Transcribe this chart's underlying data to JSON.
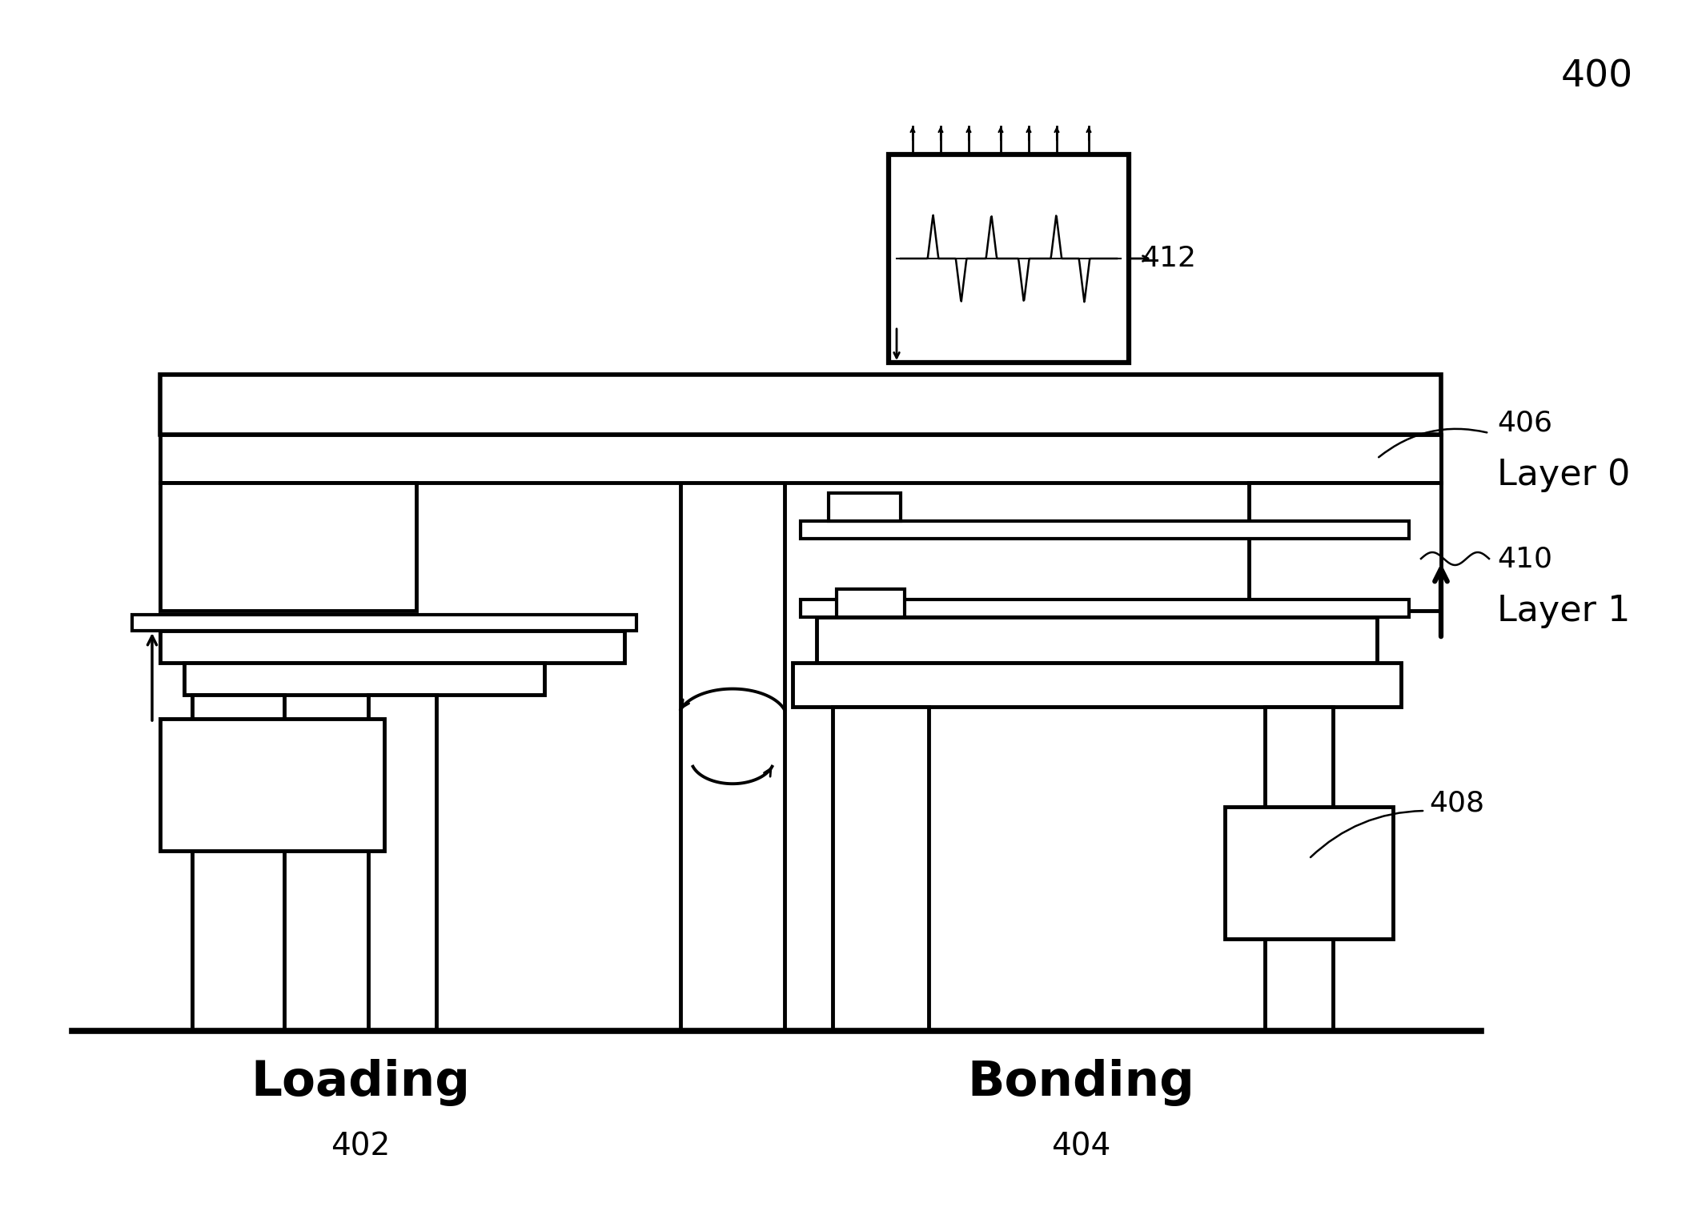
{
  "bg_color": "#ffffff",
  "lc": "#000000",
  "lw": 3.5,
  "thin_lw": 2.5,
  "fig_label": "400",
  "loading_label": "Loading",
  "bonding_label": "Bonding",
  "label_402": "402",
  "label_404": "404",
  "label_406": "406",
  "label_408": "408",
  "label_410": "410",
  "label_412": "412",
  "layer0_label": "Layer 0",
  "layer1_label": "Layer 1",
  "xlim": [
    0,
    21.16
  ],
  "ylim": [
    0,
    15.23
  ]
}
